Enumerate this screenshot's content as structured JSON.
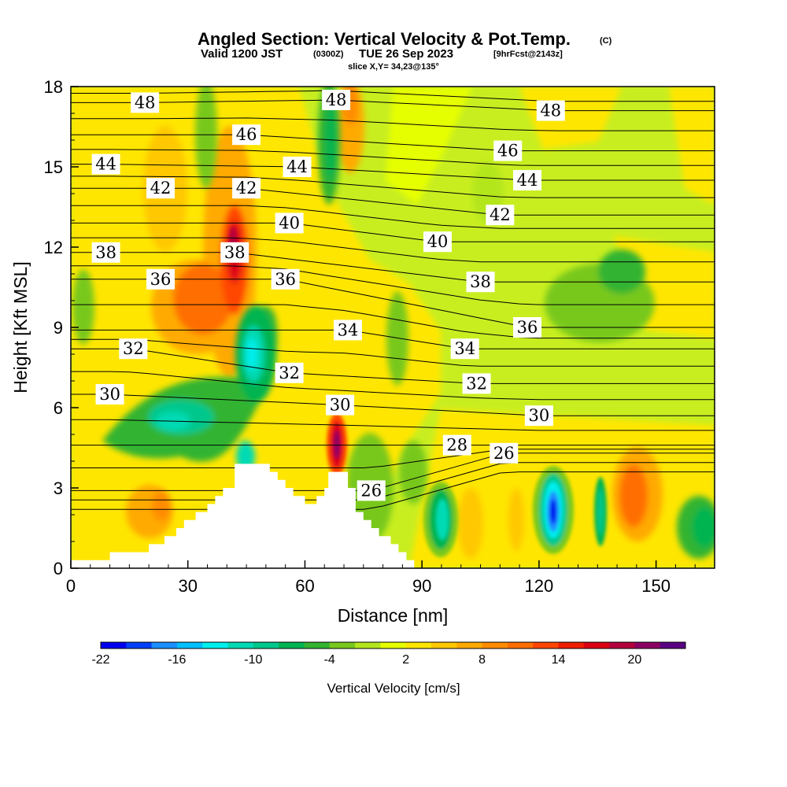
{
  "header": {
    "title": "Angled Section: Vertical Velocity & Pot.Temp.",
    "title_unit": "(C)",
    "valid_prefix": "Valid 1200 JST",
    "valid_zulu": "(0300Z)",
    "valid_date": "TUE 26 Sep 2023",
    "forecast": "[9hrFcst@2143z]",
    "slice": "slice X,Y= 34,23@135°"
  },
  "colors": {
    "background_field": "#c8ee20",
    "terrain": "#ffffff",
    "contour": "#000000",
    "colorbar": [
      "#0000f0",
      "#0040f8",
      "#1a90ff",
      "#00bfff",
      "#00eeee",
      "#00dab4",
      "#00c88c",
      "#00b450",
      "#32b432",
      "#78c81e",
      "#b4e61e",
      "#e6ff00",
      "#ffe600",
      "#ffc800",
      "#ffaa00",
      "#ff8c00",
      "#ff6e00",
      "#ff4600",
      "#f01e00",
      "#dc0014",
      "#b4003c",
      "#8c0064",
      "#5a0082"
    ]
  },
  "chart_data": {
    "type": "heatmap",
    "xlabel": "Distance [nm]",
    "ylabel": "Height [Kft MSL]",
    "xlim": [
      0,
      165
    ],
    "ylim": [
      0,
      18
    ],
    "xticks": [
      0,
      30,
      60,
      90,
      120,
      150
    ],
    "yticks": [
      0,
      3,
      6,
      9,
      12,
      15,
      18
    ],
    "colorbar": {
      "title": "Vertical Velocity [cm/s]",
      "ticks": [
        -22,
        -16,
        -10,
        -4,
        2,
        8,
        14,
        20
      ]
    },
    "theta_contour_labels": [
      {
        "value": 48,
        "x": 19,
        "y": 17.4
      },
      {
        "value": 48,
        "x": 68,
        "y": 17.5
      },
      {
        "value": 48,
        "x": 123,
        "y": 17.1
      },
      {
        "value": 46,
        "x": 45,
        "y": 16.2
      },
      {
        "value": 46,
        "x": 112,
        "y": 15.6
      },
      {
        "value": 44,
        "x": 9,
        "y": 15.1
      },
      {
        "value": 44,
        "x": 58,
        "y": 15.0
      },
      {
        "value": 44,
        "x": 117,
        "y": 14.5
      },
      {
        "value": 42,
        "x": 23,
        "y": 14.2
      },
      {
        "value": 42,
        "x": 45,
        "y": 14.2
      },
      {
        "value": 42,
        "x": 110,
        "y": 13.2
      },
      {
        "value": 40,
        "x": 56,
        "y": 12.9
      },
      {
        "value": 40,
        "x": 94,
        "y": 12.2
      },
      {
        "value": 38,
        "x": 9,
        "y": 11.8
      },
      {
        "value": 38,
        "x": 42,
        "y": 11.8
      },
      {
        "value": 38,
        "x": 105,
        "y": 10.7
      },
      {
        "value": 36,
        "x": 23,
        "y": 10.8
      },
      {
        "value": 36,
        "x": 55,
        "y": 10.8
      },
      {
        "value": 36,
        "x": 117,
        "y": 9.0
      },
      {
        "value": 34,
        "x": 71,
        "y": 8.9
      },
      {
        "value": 34,
        "x": 101,
        "y": 8.2
      },
      {
        "value": 32,
        "x": 16,
        "y": 8.2
      },
      {
        "value": 32,
        "x": 56,
        "y": 7.3
      },
      {
        "value": 32,
        "x": 104,
        "y": 6.9
      },
      {
        "value": 30,
        "x": 10,
        "y": 6.5
      },
      {
        "value": 30,
        "x": 69,
        "y": 6.1
      },
      {
        "value": 30,
        "x": 120,
        "y": 5.7
      },
      {
        "value": 28,
        "x": 99,
        "y": 4.6
      },
      {
        "value": 26,
        "x": 111,
        "y": 4.3
      },
      {
        "value": 26,
        "x": 77,
        "y": 2.9
      }
    ],
    "terrain_profile": [
      [
        0,
        0.3
      ],
      [
        10,
        0.3
      ],
      [
        10,
        0.6
      ],
      [
        20,
        0.6
      ],
      [
        20,
        0.9
      ],
      [
        24,
        0.9
      ],
      [
        24,
        1.2
      ],
      [
        27,
        1.2
      ],
      [
        27,
        1.5
      ],
      [
        29,
        1.5
      ],
      [
        29,
        1.8
      ],
      [
        32,
        1.8
      ],
      [
        32,
        2.1
      ],
      [
        35,
        2.1
      ],
      [
        35,
        2.4
      ],
      [
        37,
        2.4
      ],
      [
        37,
        2.7
      ],
      [
        39,
        2.7
      ],
      [
        39,
        3.0
      ],
      [
        42,
        3.0
      ],
      [
        42,
        3.9
      ],
      [
        51,
        3.9
      ],
      [
        51,
        3.6
      ],
      [
        53,
        3.6
      ],
      [
        53,
        3.3
      ],
      [
        55,
        3.3
      ],
      [
        55,
        3.0
      ],
      [
        57,
        3.0
      ],
      [
        57,
        2.7
      ],
      [
        60,
        2.7
      ],
      [
        60,
        2.4
      ],
      [
        63,
        2.4
      ],
      [
        63,
        2.7
      ],
      [
        65,
        2.7
      ],
      [
        65,
        3.0
      ],
      [
        66,
        3.0
      ],
      [
        66,
        3.6
      ],
      [
        71,
        3.6
      ],
      [
        71,
        3.0
      ],
      [
        73,
        3.0
      ],
      [
        73,
        2.1
      ],
      [
        75,
        2.1
      ],
      [
        75,
        1.8
      ],
      [
        77,
        1.8
      ],
      [
        77,
        1.5
      ],
      [
        79,
        1.5
      ],
      [
        79,
        1.2
      ],
      [
        82,
        1.2
      ],
      [
        82,
        0.9
      ],
      [
        84,
        0.9
      ],
      [
        84,
        0.6
      ],
      [
        86,
        0.6
      ],
      [
        86,
        0.3
      ],
      [
        88,
        0.3
      ],
      [
        88,
        0
      ],
      [
        0,
        0
      ]
    ]
  }
}
